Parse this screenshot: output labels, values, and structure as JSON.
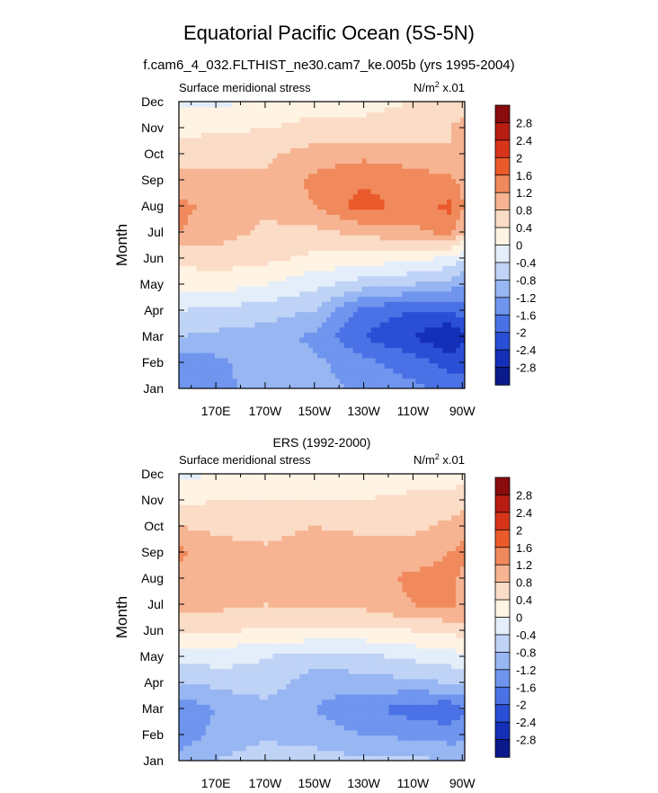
{
  "title": "Equatorial Pacific Ocean (5S-5N)",
  "subtitle": "f.cam6_4_032.FLTHIST_ne30.cam7_ke.005b (yrs 1995-2004)",
  "colorbar": {
    "levels": [
      "2.8",
      "2.4",
      "2",
      "1.6",
      "1.2",
      "0.8",
      "0.4",
      "0",
      "-0.4",
      "-0.8",
      "-1.2",
      "-1.6",
      "-2",
      "-2.4",
      "-2.8"
    ],
    "colors": [
      "#8a0c0c",
      "#b81c12",
      "#d8341a",
      "#ea5a2a",
      "#f08a5c",
      "#f6b492",
      "#fbdcc6",
      "#fff3e4",
      "#e4eefa",
      "#bfd3f6",
      "#97b6f2",
      "#6f95ee",
      "#4a72e6",
      "#2a4fd6",
      "#1530b8",
      "#0b1a8a"
    ]
  },
  "chart_data": [
    {
      "type": "heatmap",
      "panel_title": "",
      "left_label": "Surface meridional stress",
      "units_main": "N/m",
      "units_sup": "2",
      "units_rest": " x.01",
      "ylabel": "Month",
      "y_categories": [
        "Jan",
        "Feb",
        "Mar",
        "Apr",
        "May",
        "Jun",
        "Jul",
        "Aug",
        "Sep",
        "Oct",
        "Nov",
        "Dec"
      ],
      "x_ticks": [
        "170E",
        "170W",
        "150W",
        "130W",
        "110W",
        "90W"
      ],
      "x_tick_lons": [
        170,
        190,
        210,
        230,
        250,
        270
      ],
      "xlim": [
        155,
        271
      ],
      "ylim": [
        1,
        12
      ],
      "z_min": -3.0,
      "z_max": 3.0,
      "x": [
        155,
        170,
        190,
        210,
        230,
        250,
        265,
        271
      ],
      "y": [
        1,
        2,
        3,
        4,
        5,
        6,
        7,
        8,
        9,
        10,
        11,
        12
      ],
      "z": [
        [
          -1.5,
          -1.4,
          -0.9,
          -1.0,
          -1.3,
          -1.5,
          -1.7,
          -1.8
        ],
        [
          -1.5,
          -1.3,
          -1.0,
          -1.1,
          -1.5,
          -1.8,
          -2.2,
          -2.2
        ],
        [
          -0.8,
          -0.9,
          -1.0,
          -1.3,
          -2.0,
          -2.4,
          -2.8,
          -2.4
        ],
        [
          -0.4,
          -0.5,
          -0.6,
          -0.8,
          -1.8,
          -2.0,
          -2.0,
          -1.8
        ],
        [
          0.1,
          0.2,
          0.0,
          -0.3,
          -0.6,
          -0.8,
          -1.0,
          -1.2
        ],
        [
          0.5,
          0.6,
          0.5,
          0.3,
          0.2,
          0.1,
          -0.1,
          -0.4
        ],
        [
          1.2,
          1.0,
          0.7,
          0.7,
          0.9,
          1.1,
          1.3,
          0.8
        ],
        [
          1.3,
          1.1,
          0.9,
          1.2,
          1.8,
          1.4,
          1.7,
          1.2
        ],
        [
          1.0,
          0.9,
          0.9,
          1.3,
          1.5,
          1.4,
          1.3,
          1.0
        ],
        [
          0.6,
          0.7,
          0.7,
          1.0,
          1.1,
          1.0,
          0.8,
          1.0
        ],
        [
          0.3,
          0.3,
          0.4,
          0.5,
          0.5,
          0.6,
          0.8,
          1.0
        ],
        [
          -0.1,
          -0.1,
          0.1,
          0.3,
          0.3,
          0.4,
          0.5,
          0.6
        ]
      ]
    },
    {
      "type": "heatmap",
      "panel_title": "ERS (1992-2000)",
      "left_label": "Surface meridional stress",
      "units_main": "N/m",
      "units_sup": "2",
      "units_rest": " x.01",
      "ylabel": "Month",
      "y_categories": [
        "Jan",
        "Feb",
        "Mar",
        "Apr",
        "May",
        "Jun",
        "Jul",
        "Aug",
        "Sep",
        "Oct",
        "Nov",
        "Dec"
      ],
      "x_ticks": [
        "170E",
        "170W",
        "150W",
        "130W",
        "110W",
        "90W"
      ],
      "x_tick_lons": [
        170,
        190,
        210,
        230,
        250,
        270
      ],
      "xlim": [
        155,
        271
      ],
      "ylim": [
        1,
        12
      ],
      "z_min": -3.0,
      "z_max": 3.0,
      "x": [
        155,
        170,
        190,
        210,
        230,
        250,
        265,
        271
      ],
      "y": [
        1,
        2,
        3,
        4,
        5,
        6,
        7,
        8,
        9,
        10,
        11,
        12
      ],
      "z": [
        [
          -1.1,
          -0.8,
          -0.5,
          -0.6,
          -0.7,
          -0.7,
          -0.8,
          -0.9
        ],
        [
          -1.4,
          -1.1,
          -0.9,
          -1.0,
          -1.2,
          -1.3,
          -1.4,
          -1.3
        ],
        [
          -1.5,
          -1.2,
          -1.0,
          -1.2,
          -1.5,
          -1.8,
          -1.9,
          -1.6
        ],
        [
          -0.8,
          -0.7,
          -0.5,
          -1.1,
          -1.0,
          -0.9,
          -0.8,
          -0.7
        ],
        [
          -0.3,
          -0.2,
          -0.4,
          -0.5,
          -0.5,
          -0.3,
          -0.2,
          -0.1
        ],
        [
          0.5,
          0.5,
          0.3,
          0.3,
          0.3,
          0.4,
          0.5,
          0.6
        ],
        [
          0.9,
          0.9,
          0.8,
          0.9,
          0.9,
          1.2,
          1.3,
          1.1
        ],
        [
          1.0,
          0.8,
          0.9,
          1.0,
          1.0,
          1.3,
          1.3,
          1.1
        ],
        [
          1.3,
          1.0,
          0.9,
          1.1,
          1.0,
          1.0,
          1.2,
          1.3
        ],
        [
          0.8,
          0.7,
          0.6,
          0.8,
          0.7,
          0.7,
          0.9,
          1.1
        ],
        [
          0.3,
          0.4,
          0.4,
          0.4,
          0.4,
          0.5,
          0.5,
          0.6
        ],
        [
          -0.1,
          0.0,
          0.1,
          0.1,
          0.2,
          0.2,
          0.2,
          0.3
        ]
      ]
    }
  ]
}
